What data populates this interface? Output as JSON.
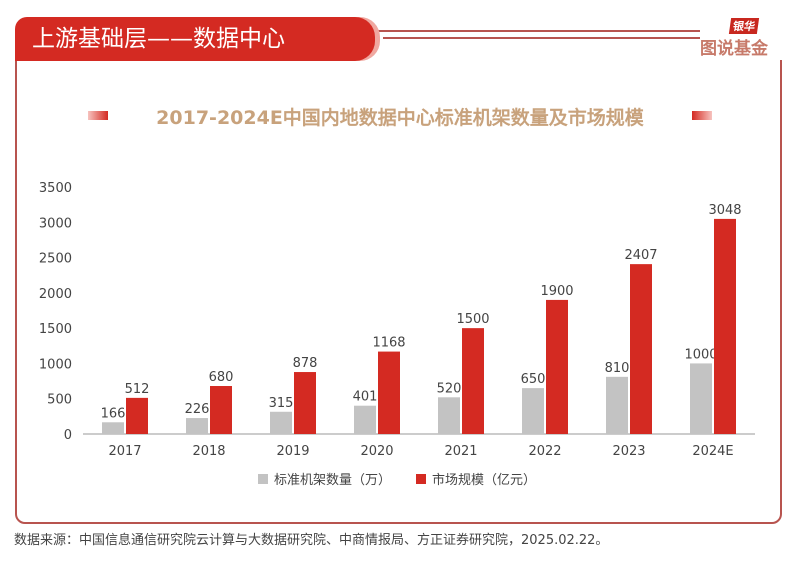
{
  "header": {
    "section_title": "上游基础层——数据中心",
    "logo_top": "银华",
    "logo_bottom": "图说基金"
  },
  "chart_data": {
    "type": "bar",
    "title": "2017-2024E中国内地数据中心标准机架数量及市场规模",
    "categories": [
      "2017",
      "2018",
      "2019",
      "2020",
      "2021",
      "2022",
      "2023",
      "2024E"
    ],
    "series": [
      {
        "name": "标准机架数量（万）",
        "color": "#c3c3c3",
        "values": [
          166,
          226,
          315,
          401,
          520,
          650,
          810,
          1000
        ]
      },
      {
        "name": "市场规模（亿元）",
        "color": "#d42a22",
        "values": [
          512,
          680,
          878,
          1168,
          1500,
          1900,
          2407,
          3048
        ]
      }
    ],
    "ylim": [
      0,
      3500
    ],
    "yticks": [
      0,
      500,
      1000,
      1500,
      2000,
      2500,
      3000,
      3500
    ],
    "grid": false,
    "legend": "bottom"
  },
  "source": "数据来源：中国信息通信研究院云计算与大数据研究院、中商情报局、方正证券研究院，2025.02.22。"
}
